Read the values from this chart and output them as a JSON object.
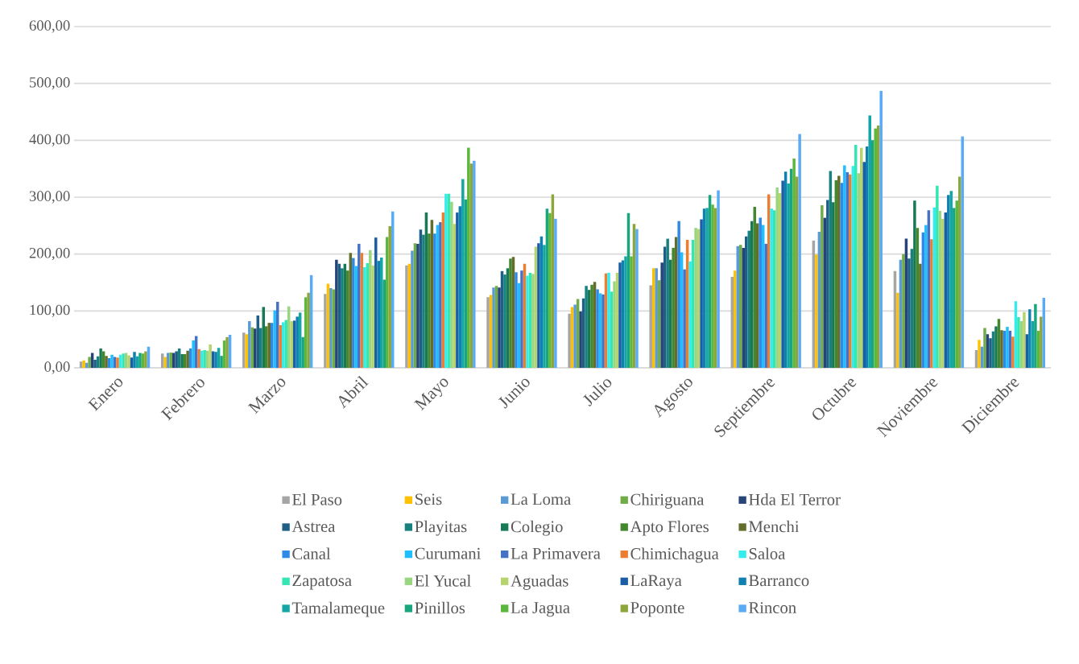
{
  "chart_data": {
    "type": "bar",
    "categories": [
      "Enero",
      "Febrero",
      "Marzo",
      "Abril",
      "Mayo",
      "Junio",
      "Julio",
      "Agosto",
      "Septiembre",
      "Octubre",
      "Noviembre",
      "Diciembre"
    ],
    "ylim": [
      0,
      600
    ],
    "yticks": [
      {
        "value": 0,
        "label": "0,00"
      },
      {
        "value": 100,
        "label": "100,00"
      },
      {
        "value": 200,
        "label": "200,00"
      },
      {
        "value": 300,
        "label": "300,00"
      },
      {
        "value": 400,
        "label": "400,00"
      },
      {
        "value": 500,
        "label": "500,00"
      },
      {
        "value": 600,
        "label": "600,00"
      }
    ],
    "grid": "y",
    "legend": "bottom",
    "series": [
      {
        "name": "El Paso",
        "color": "#a5a5a5",
        "values": [
          11,
          25,
          62,
          130,
          180,
          124,
          95,
          145,
          160,
          224,
          170,
          31
        ]
      },
      {
        "name": "Seis",
        "color": "#ffc000",
        "values": [
          13,
          19,
          59,
          148,
          183,
          128,
          107,
          175,
          171,
          199,
          132,
          49
        ]
      },
      {
        "name": "La Loma",
        "color": "#5b9bd5",
        "values": [
          9,
          26,
          82,
          140,
          206,
          141,
          111,
          175,
          214,
          239,
          190,
          37
        ]
      },
      {
        "name": "Chiriguana",
        "color": "#70ad47",
        "values": [
          19,
          27,
          71,
          138,
          219,
          144,
          121,
          154,
          216,
          286,
          200,
          70
        ]
      },
      {
        "name": "Hda El Terror",
        "color": "#264478",
        "values": [
          26,
          26,
          69,
          190,
          218,
          141,
          99,
          185,
          211,
          264,
          227,
          59
        ]
      },
      {
        "name": "Astrea",
        "color": "#1f5f86",
        "values": [
          14,
          29,
          92,
          183,
          243,
          170,
          122,
          213,
          231,
          295,
          192,
          52
        ]
      },
      {
        "name": "Playitas",
        "color": "#198080",
        "values": [
          20,
          34,
          70,
          175,
          234,
          164,
          144,
          227,
          241,
          346,
          209,
          64
        ]
      },
      {
        "name": "Colegio",
        "color": "#187a55",
        "values": [
          34,
          24,
          107,
          183,
          273,
          175,
          137,
          190,
          258,
          291,
          294,
          73
        ]
      },
      {
        "name": "Apto Flores",
        "color": "#43882f",
        "values": [
          29,
          24,
          73,
          171,
          236,
          192,
          146,
          211,
          283,
          330,
          246,
          86
        ]
      },
      {
        "name": "Menchi",
        "color": "#636e2a",
        "values": [
          21,
          30,
          79,
          202,
          260,
          195,
          151,
          230,
          254,
          338,
          183,
          66
        ]
      },
      {
        "name": "Canal",
        "color": "#2e8ae6",
        "values": [
          17,
          34,
          79,
          193,
          236,
          168,
          138,
          258,
          264,
          325,
          238,
          65
        ]
      },
      {
        "name": "Curumani",
        "color": "#1fbfff",
        "values": [
          23,
          48,
          101,
          179,
          251,
          149,
          131,
          203,
          251,
          356,
          251,
          72
        ]
      },
      {
        "name": "La Primavera",
        "color": "#4472c4",
        "values": [
          19,
          56,
          116,
          218,
          256,
          171,
          129,
          173,
          218,
          344,
          277,
          65
        ]
      },
      {
        "name": "Chimichagua",
        "color": "#ed7d31",
        "values": [
          18,
          33,
          75,
          202,
          273,
          183,
          166,
          225,
          305,
          340,
          226,
          55
        ]
      },
      {
        "name": "Saloa",
        "color": "#33eded",
        "values": [
          23,
          30,
          80,
          177,
          306,
          162,
          167,
          187,
          280,
          355,
          282,
          117
        ]
      },
      {
        "name": "Zapatosa",
        "color": "#33e6b3",
        "values": [
          25,
          31,
          84,
          184,
          306,
          167,
          134,
          225,
          277,
          392,
          320,
          89
        ]
      },
      {
        "name": "El Yucal",
        "color": "#99d67f",
        "values": [
          26,
          30,
          108,
          207,
          292,
          165,
          152,
          246,
          317,
          342,
          276,
          82
        ]
      },
      {
        "name": "Aguadas",
        "color": "#b5d46e",
        "values": [
          22,
          41,
          82,
          180,
          253,
          213,
          167,
          244,
          307,
          387,
          262,
          98
        ]
      },
      {
        "name": "LaRaya",
        "color": "#1a5ea6",
        "values": [
          18,
          29,
          83,
          229,
          273,
          219,
          185,
          261,
          329,
          362,
          273,
          59
        ]
      },
      {
        "name": "Barranco",
        "color": "#0f80b0",
        "values": [
          28,
          28,
          90,
          188,
          284,
          231,
          189,
          280,
          345,
          389,
          304,
          103
        ]
      },
      {
        "name": "Tamalameque",
        "color": "#14a6a6",
        "values": [
          20,
          35,
          97,
          194,
          332,
          216,
          196,
          281,
          324,
          444,
          311,
          82
        ]
      },
      {
        "name": "Pinillos",
        "color": "#19a67f",
        "values": [
          26,
          21,
          54,
          155,
          296,
          280,
          272,
          304,
          350,
          400,
          281,
          112
        ]
      },
      {
        "name": "La Jagua",
        "color": "#5cb83d",
        "values": [
          25,
          48,
          124,
          230,
          387,
          272,
          196,
          287,
          368,
          421,
          294,
          65
        ]
      },
      {
        "name": "Poponte",
        "color": "#8ca63c",
        "values": [
          29,
          54,
          132,
          249,
          359,
          305,
          253,
          281,
          336,
          426,
          336,
          90
        ]
      },
      {
        "name": "Rincon",
        "color": "#5aabf5",
        "values": [
          37,
          58,
          163,
          275,
          364,
          262,
          244,
          312,
          411,
          487,
          407,
          123
        ]
      }
    ]
  }
}
